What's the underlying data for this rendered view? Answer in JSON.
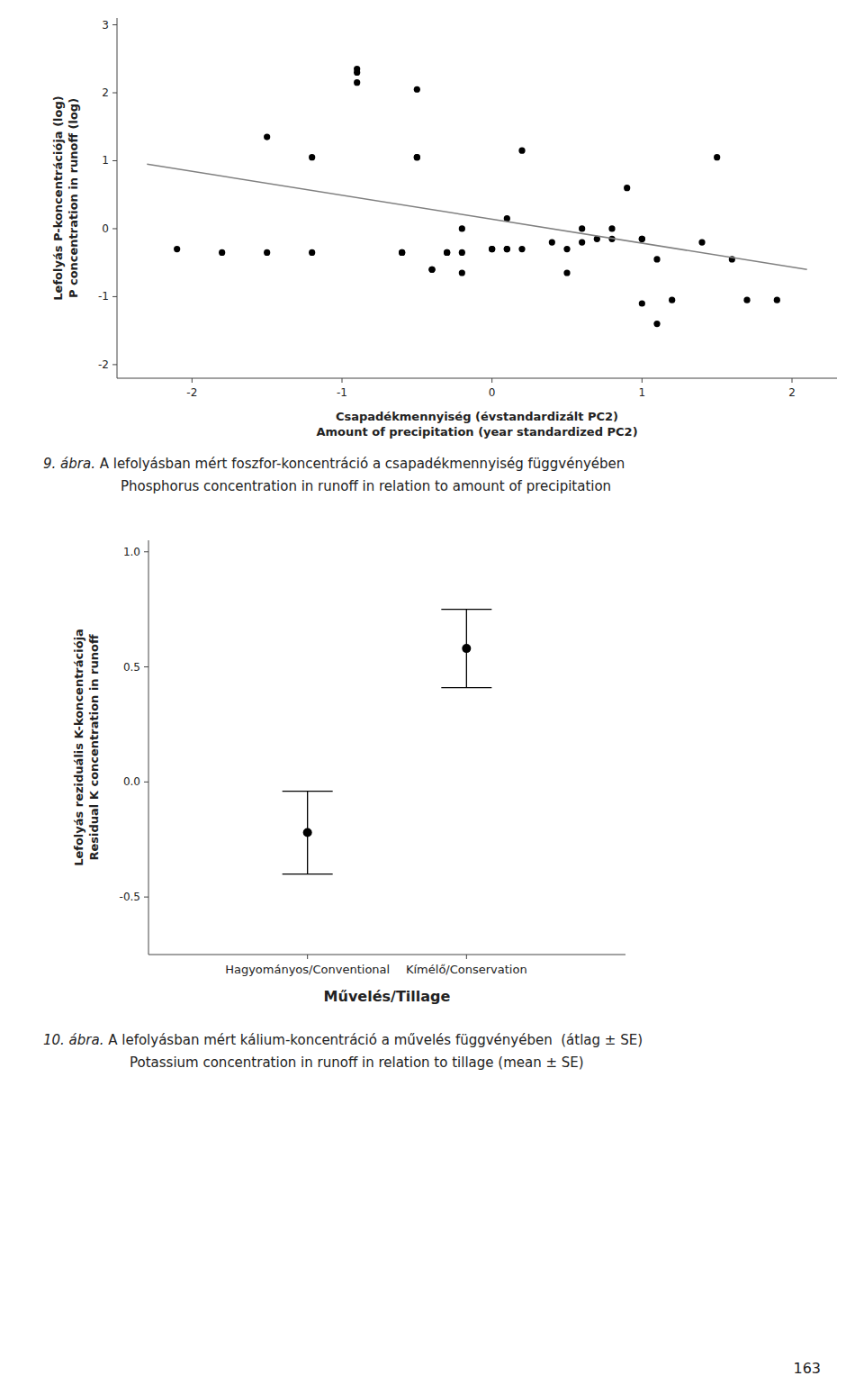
{
  "chart_data": [
    {
      "type": "scatter",
      "xlabel": "Csapadékmennyiség (évstandardizált PC2)\nAmount of precipitation (year standardized PC2)",
      "ylabel": "Lefolyás P-koncentrációja (log)\nP concentration in runoff (log)",
      "series": [
        {
          "type": "scatter",
          "color": "black",
          "marker": "circle",
          "x": [
            -2.1,
            -1.8,
            -1.5,
            -1.5,
            -1.2,
            -1.2,
            -0.9,
            -0.9,
            -0.9,
            -0.6,
            -0.6,
            -0.5,
            -0.5,
            -0.5,
            -0.4,
            -0.4,
            -0.3,
            -0.3,
            -0.2,
            -0.2,
            -0.2,
            0.0,
            0.0,
            0.1,
            0.1,
            0.1,
            0.2,
            0.2,
            0.4,
            0.5,
            0.5,
            0.6,
            0.6,
            0.7,
            0.8,
            0.8,
            0.9,
            1.0,
            1.0,
            1.0,
            1.1,
            1.1,
            1.2,
            1.4,
            1.5,
            1.6,
            1.7,
            1.9
          ],
          "values": [
            -0.3,
            -0.35,
            1.35,
            -0.35,
            1.05,
            -0.35,
            2.15,
            2.3,
            2.35,
            -0.35,
            -0.35,
            2.05,
            1.05,
            1.05,
            -0.6,
            -0.6,
            -0.35,
            -0.35,
            -0.65,
            0.0,
            -0.35,
            -0.3,
            -0.3,
            0.15,
            -0.3,
            -0.3,
            1.15,
            -0.3,
            -0.2,
            -0.3,
            -0.65,
            -0.2,
            0.0,
            -0.15,
            0.0,
            -0.15,
            0.6,
            -0.15,
            -0.15,
            -1.1,
            -0.45,
            -1.4,
            -1.05,
            -0.2,
            1.05,
            -0.45,
            -1.05,
            -1.05
          ]
        },
        {
          "type": "line",
          "color": "gray",
          "line_style": "solid",
          "x": [
            -2.3,
            2.1
          ],
          "values": [
            0.95,
            -0.6
          ]
        }
      ],
      "xlim": [
        -2.5,
        2.3
      ],
      "ylim": [
        -2.2,
        3.1
      ],
      "xticks": [
        -2,
        -1,
        0,
        1,
        2
      ],
      "yticks": [
        -2,
        -1,
        0,
        1,
        2,
        3
      ],
      "grid": false,
      "annotations": [
        "9. ábra.",
        " A lefolyásban mért foszfor-koncentráció a csapadékmennyiség függvényében",
        "Phosphorus concentration in runoff in relation to amount of precipitation"
      ]
    },
    {
      "type": "errorbar",
      "xlabel": "Művelés/Tillage",
      "ylabel": "Lefolyás reziduális K-koncentrációja\nResidual K concentration in runoff",
      "categories": [
        "Hagyományos/Conventional",
        "Kímélő/Conservation"
      ],
      "values": [
        -0.22,
        0.58
      ],
      "errors": [
        0.18,
        0.17
      ],
      "color": "black",
      "marker": "circle",
      "ylim": [
        -0.75,
        1.05
      ],
      "yticks": [
        -0.5,
        {
          "value": 0.0,
          "label": "0.0"
        },
        0.5,
        {
          "value": 1.0,
          "label": "1.0"
        }
      ],
      "grid": false,
      "annotations": [
        "10. ábra.",
        " A lefolyásban mért kálium-koncentráció a művelés függvényében  (átlag ± SE)",
        "Potassium concentration in runoff in relation to tillage (mean ± SE)",
        "163"
      ]
    }
  ]
}
